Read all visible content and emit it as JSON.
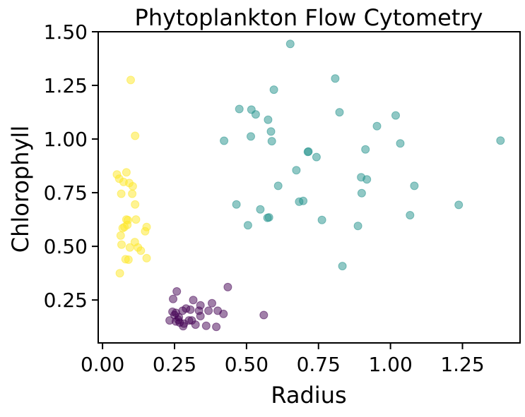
{
  "colors": {
    "cluster_low_radius": "#fde725",
    "cluster_small": "#440154",
    "cluster_large": "#21918c",
    "axis": "#000000",
    "background": "#ffffff"
  },
  "chart_data": {
    "type": "scatter",
    "title": "Phytoplankton Flow Cytometry",
    "xlabel": "Radius",
    "ylabel": "Chlorophyll",
    "xlim": [
      -0.015,
      1.45
    ],
    "ylim": [
      0.05,
      1.5
    ],
    "grid": false,
    "legend": "none",
    "x_ticks": [
      0.0,
      0.25,
      0.5,
      0.75,
      1.0,
      1.25
    ],
    "x_tick_labels": [
      "0.00",
      "0.25",
      "0.50",
      "0.75",
      "1.00",
      "1.25"
    ],
    "y_ticks": [
      0.25,
      0.5,
      0.75,
      1.0,
      1.25,
      1.5
    ],
    "y_tick_labels": [
      "0.25",
      "0.50",
      "0.75",
      "1.00",
      "1.25",
      "1.50"
    ],
    "marker_opacity": 0.5,
    "series": [
      {
        "color": "#fde725",
        "points": [
          [
            0.098,
            1.275
          ],
          [
            0.113,
            1.015
          ],
          [
            0.05,
            0.835
          ],
          [
            0.083,
            0.845
          ],
          [
            0.058,
            0.815
          ],
          [
            0.073,
            0.8
          ],
          [
            0.093,
            0.795
          ],
          [
            0.105,
            0.78
          ],
          [
            0.065,
            0.745
          ],
          [
            0.103,
            0.745
          ],
          [
            0.113,
            0.695
          ],
          [
            0.083,
            0.625
          ],
          [
            0.088,
            0.622
          ],
          [
            0.116,
            0.625
          ],
          [
            0.153,
            0.59
          ],
          [
            0.086,
            0.6
          ],
          [
            0.07,
            0.585
          ],
          [
            0.076,
            0.59
          ],
          [
            0.148,
            0.57
          ],
          [
            0.063,
            0.55
          ],
          [
            0.112,
            0.52
          ],
          [
            0.066,
            0.508
          ],
          [
            0.123,
            0.495
          ],
          [
            0.095,
            0.495
          ],
          [
            0.133,
            0.48
          ],
          [
            0.08,
            0.44
          ],
          [
            0.09,
            0.438
          ],
          [
            0.153,
            0.445
          ],
          [
            0.06,
            0.375
          ]
        ]
      },
      {
        "color": "#440154",
        "points": [
          [
            0.435,
            0.31
          ],
          [
            0.258,
            0.29
          ],
          [
            0.245,
            0.255
          ],
          [
            0.315,
            0.25
          ],
          [
            0.38,
            0.235
          ],
          [
            0.34,
            0.225
          ],
          [
            0.29,
            0.21
          ],
          [
            0.278,
            0.2
          ],
          [
            0.335,
            0.2
          ],
          [
            0.305,
            0.205
          ],
          [
            0.4,
            0.2
          ],
          [
            0.243,
            0.195
          ],
          [
            0.255,
            0.19
          ],
          [
            0.368,
            0.2
          ],
          [
            0.42,
            0.185
          ],
          [
            0.25,
            0.18
          ],
          [
            0.34,
            0.175
          ],
          [
            0.265,
            0.17
          ],
          [
            0.56,
            0.18
          ],
          [
            0.233,
            0.155
          ],
          [
            0.255,
            0.15
          ],
          [
            0.268,
            0.145
          ],
          [
            0.3,
            0.155
          ],
          [
            0.31,
            0.155
          ],
          [
            0.283,
            0.14
          ],
          [
            0.36,
            0.13
          ],
          [
            0.395,
            0.125
          ],
          [
            0.28,
            0.128
          ],
          [
            0.323,
            0.135
          ],
          [
            0.263,
            0.158
          ]
        ]
      },
      {
        "color": "#21918c",
        "points": [
          [
            0.652,
            1.443
          ],
          [
            0.808,
            1.282
          ],
          [
            0.595,
            1.23
          ],
          [
            0.475,
            1.14
          ],
          [
            0.517,
            1.137
          ],
          [
            0.532,
            1.115
          ],
          [
            0.823,
            1.125
          ],
          [
            1.018,
            1.11
          ],
          [
            0.575,
            1.09
          ],
          [
            0.953,
            1.06
          ],
          [
            0.585,
            1.035
          ],
          [
            0.515,
            1.012
          ],
          [
            0.422,
            0.992
          ],
          [
            0.588,
            0.99
          ],
          [
            1.034,
            0.98
          ],
          [
            1.382,
            0.993
          ],
          [
            0.715,
            0.942
          ],
          [
            0.713,
            0.94
          ],
          [
            0.913,
            0.952
          ],
          [
            0.743,
            0.916
          ],
          [
            0.673,
            0.855
          ],
          [
            0.898,
            0.822
          ],
          [
            0.918,
            0.812
          ],
          [
            0.61,
            0.782
          ],
          [
            1.083,
            0.782
          ],
          [
            0.9,
            0.748
          ],
          [
            0.465,
            0.695
          ],
          [
            0.683,
            0.708
          ],
          [
            0.697,
            0.712
          ],
          [
            0.548,
            0.672
          ],
          [
            1.068,
            0.645
          ],
          [
            1.237,
            0.693
          ],
          [
            0.578,
            0.635
          ],
          [
            0.573,
            0.633
          ],
          [
            0.762,
            0.623
          ],
          [
            0.505,
            0.598
          ],
          [
            0.887,
            0.595
          ],
          [
            0.833,
            0.408
          ]
        ]
      }
    ]
  }
}
